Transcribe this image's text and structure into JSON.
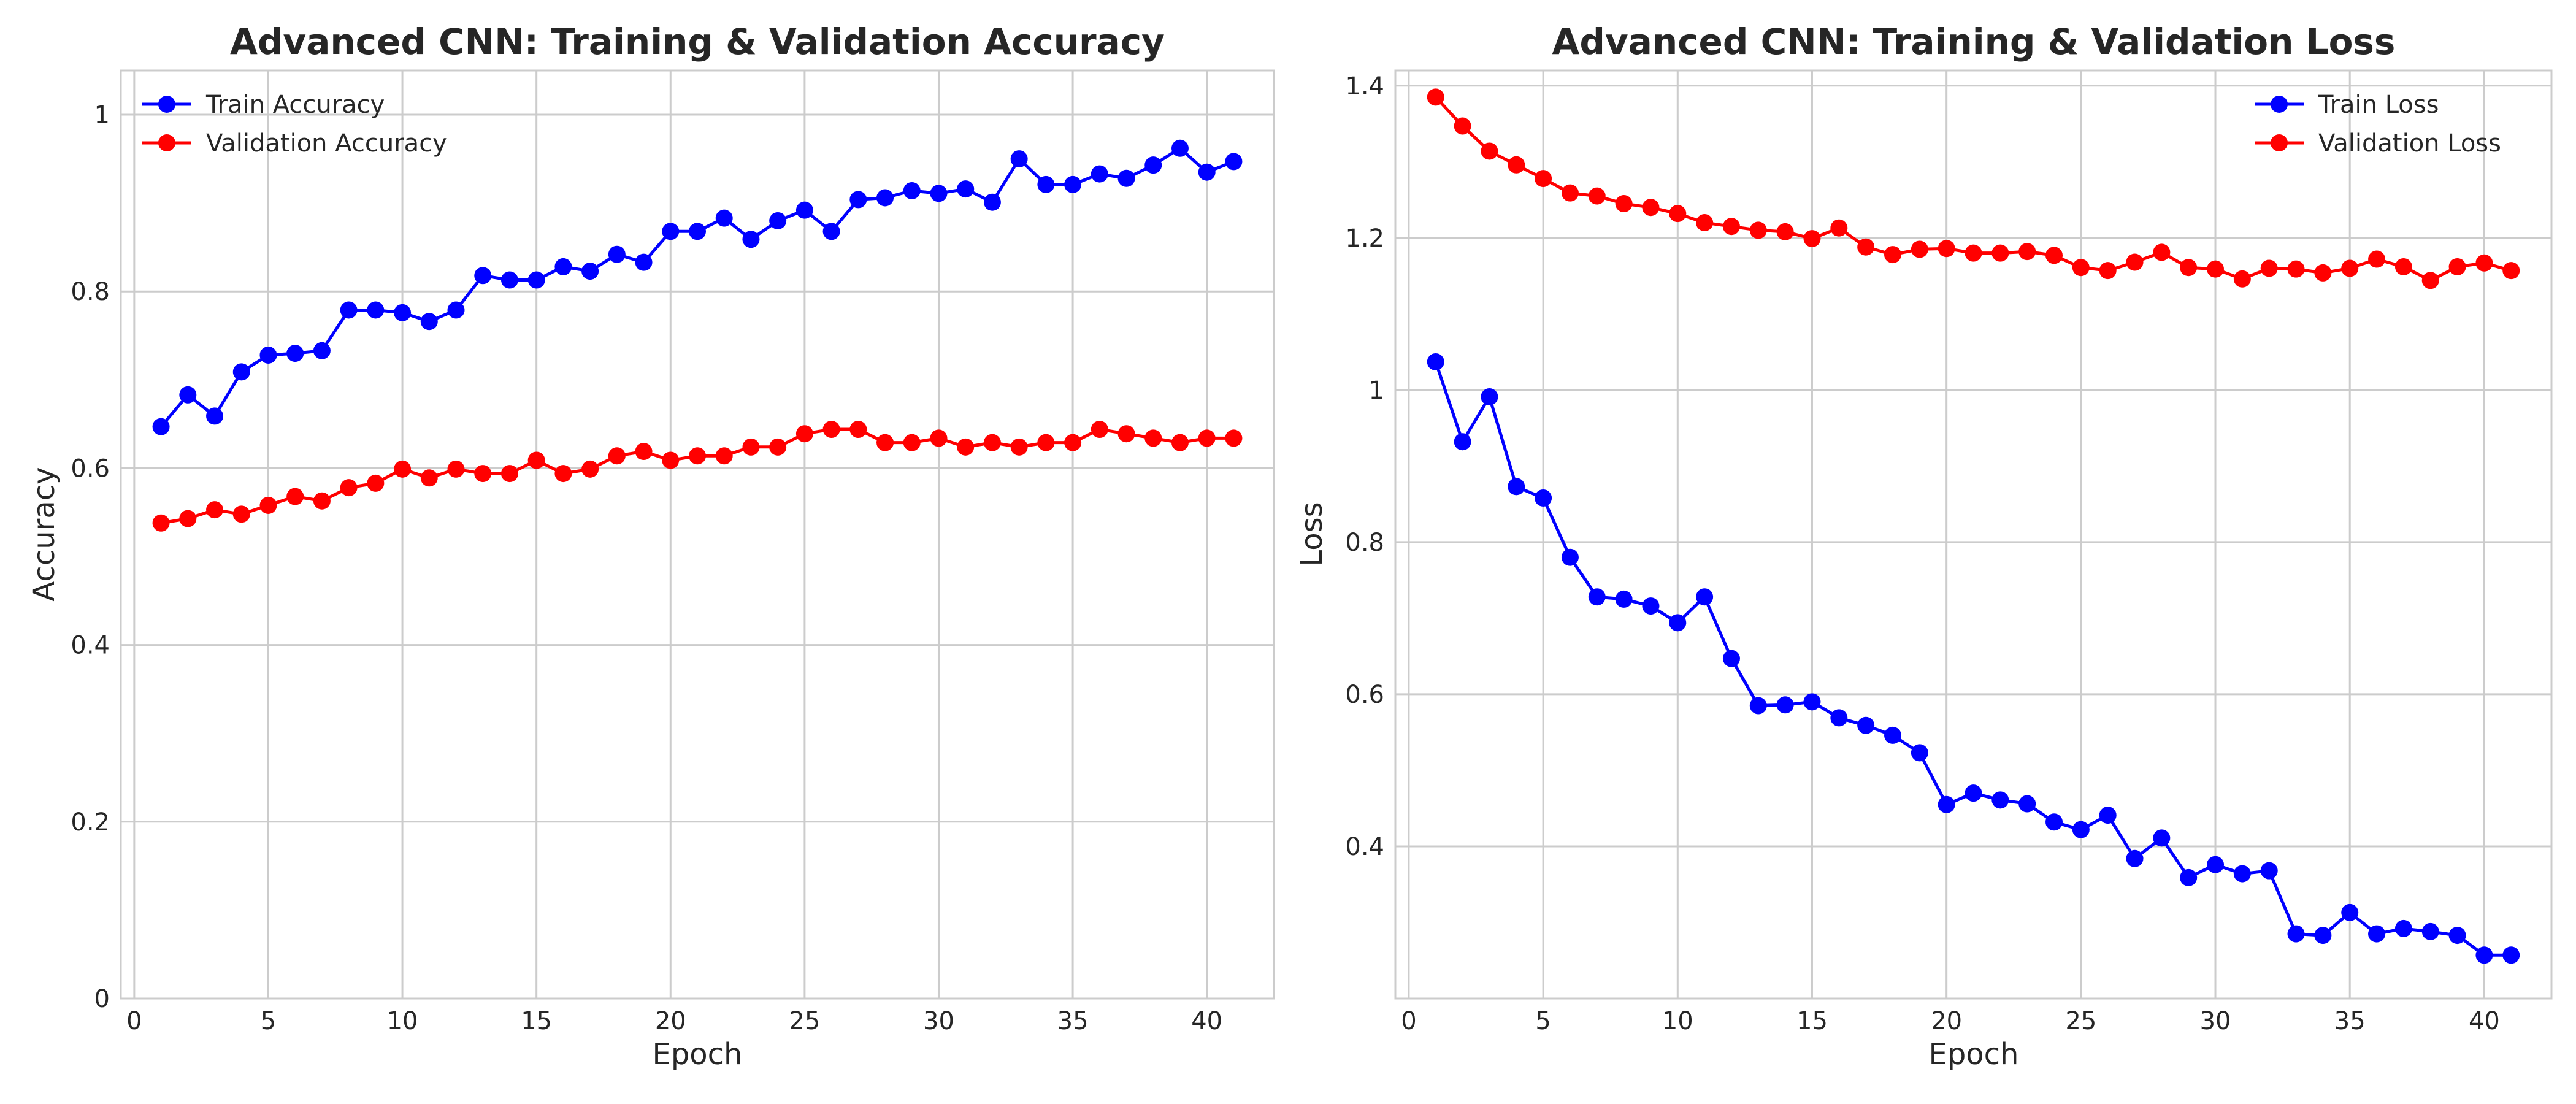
{
  "chart_data": [
    {
      "type": "line",
      "title": "Advanced CNN: Training & Validation Accuracy",
      "xlabel": "Epoch",
      "ylabel": "Accuracy",
      "xlim": [
        -0.5,
        42.5
      ],
      "ylim": [
        0.0,
        1.05
      ],
      "xticks": [
        0,
        5,
        10,
        15,
        20,
        25,
        30,
        35,
        40
      ],
      "yticks": [
        0.0,
        0.2,
        0.4,
        0.6,
        0.8,
        1.0
      ],
      "grid": true,
      "legend_position": "top-left",
      "x": [
        1,
        2,
        3,
        4,
        5,
        6,
        7,
        8,
        9,
        10,
        11,
        12,
        13,
        14,
        15,
        16,
        17,
        18,
        19,
        20,
        21,
        22,
        23,
        24,
        25,
        26,
        27,
        28,
        29,
        30,
        31,
        32,
        33,
        34,
        35,
        36,
        37,
        38,
        39,
        40,
        41
      ],
      "series": [
        {
          "name": "Train Accuracy",
          "color": "#0000ff",
          "values": [
            0.647,
            0.683,
            0.659,
            0.709,
            0.728,
            0.73,
            0.733,
            0.779,
            0.779,
            0.776,
            0.766,
            0.779,
            0.818,
            0.813,
            0.813,
            0.828,
            0.823,
            0.842,
            0.833,
            0.868,
            0.868,
            0.883,
            0.859,
            0.88,
            0.892,
            0.868,
            0.904,
            0.906,
            0.914,
            0.911,
            0.916,
            0.901,
            0.95,
            0.921,
            0.921,
            0.933,
            0.928,
            0.943,
            0.962,
            0.935,
            0.947
          ]
        },
        {
          "name": "Validation Accuracy",
          "color": "#ff0000",
          "values": [
            0.538,
            0.543,
            0.553,
            0.548,
            0.558,
            0.568,
            0.563,
            0.578,
            0.583,
            0.599,
            0.589,
            0.599,
            0.594,
            0.594,
            0.609,
            0.594,
            0.599,
            0.614,
            0.619,
            0.609,
            0.614,
            0.614,
            0.624,
            0.624,
            0.639,
            0.644,
            0.644,
            0.629,
            0.629,
            0.634,
            0.624,
            0.629,
            0.624,
            0.629,
            0.629,
            0.644,
            0.639,
            0.634,
            0.629,
            0.634,
            0.634
          ]
        }
      ]
    },
    {
      "type": "line",
      "title": "Advanced CNN: Training & Validation Loss",
      "xlabel": "Epoch",
      "ylabel": "Loss",
      "xlim": [
        -0.5,
        42.5
      ],
      "ylim": [
        0.2,
        1.42
      ],
      "xticks": [
        0,
        5,
        10,
        15,
        20,
        25,
        30,
        35,
        40
      ],
      "yticks": [
        0.4,
        0.6,
        0.8,
        1.0,
        1.2,
        1.4
      ],
      "grid": true,
      "legend_position": "top-right",
      "x": [
        1,
        2,
        3,
        4,
        5,
        6,
        7,
        8,
        9,
        10,
        11,
        12,
        13,
        14,
        15,
        16,
        17,
        18,
        19,
        20,
        21,
        22,
        23,
        24,
        25,
        26,
        27,
        28,
        29,
        30,
        31,
        32,
        33,
        34,
        35,
        36,
        37,
        38,
        39,
        40,
        41
      ],
      "series": [
        {
          "name": "Train Loss",
          "color": "#0000ff",
          "values": [
            1.037,
            0.932,
            0.991,
            0.873,
            0.858,
            0.78,
            0.728,
            0.725,
            0.716,
            0.694,
            0.728,
            0.647,
            0.585,
            0.586,
            0.59,
            0.569,
            0.559,
            0.546,
            0.523,
            0.455,
            0.47,
            0.461,
            0.456,
            0.432,
            0.422,
            0.441,
            0.384,
            0.411,
            0.359,
            0.376,
            0.364,
            0.368,
            0.285,
            0.283,
            0.313,
            0.285,
            0.292,
            0.288,
            0.283,
            0.257,
            0.257
          ]
        },
        {
          "name": "Validation Loss",
          "color": "#ff0000",
          "values": [
            1.385,
            1.347,
            1.314,
            1.296,
            1.278,
            1.259,
            1.255,
            1.245,
            1.24,
            1.232,
            1.22,
            1.215,
            1.21,
            1.208,
            1.199,
            1.213,
            1.188,
            1.178,
            1.185,
            1.186,
            1.18,
            1.18,
            1.182,
            1.177,
            1.161,
            1.157,
            1.168,
            1.181,
            1.161,
            1.159,
            1.146,
            1.16,
            1.159,
            1.154,
            1.16,
            1.172,
            1.162,
            1.144,
            1.162,
            1.167,
            1.157
          ]
        }
      ]
    }
  ]
}
